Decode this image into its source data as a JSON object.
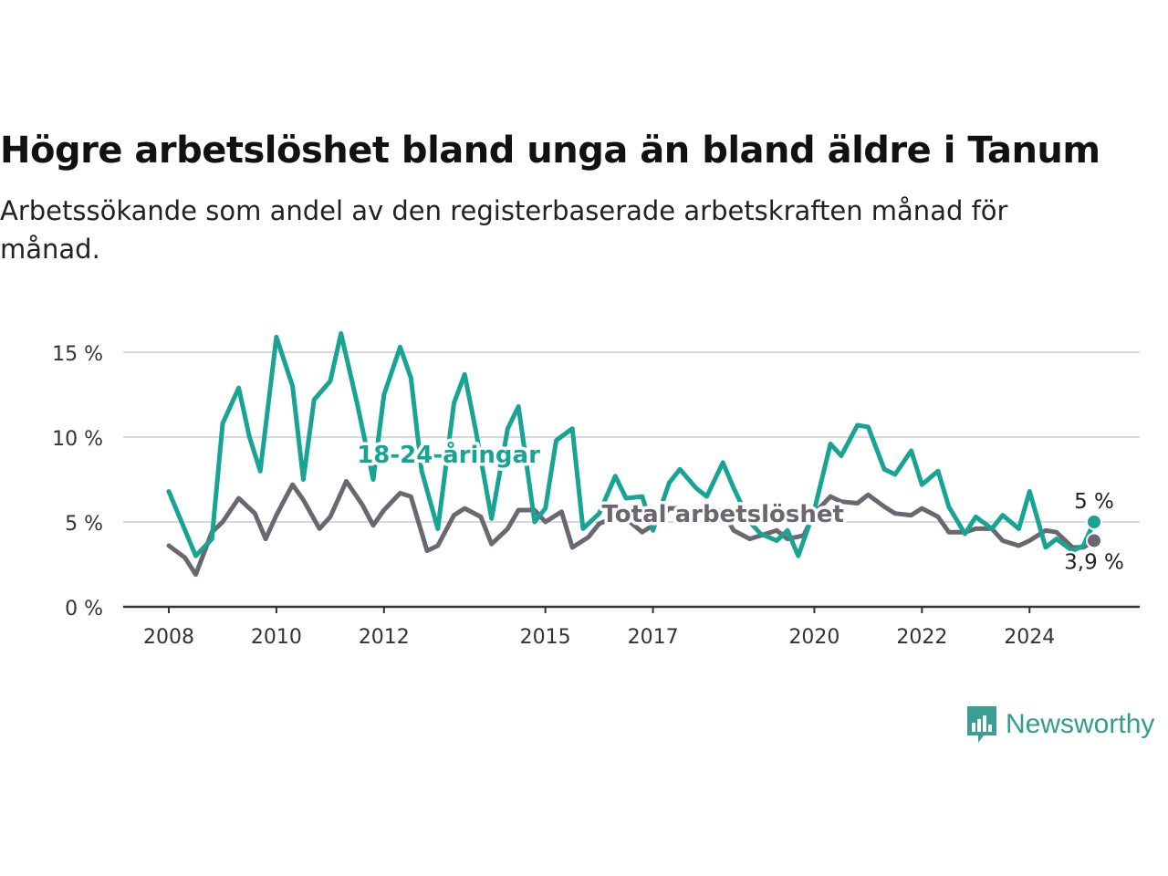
{
  "title": "Högre arbetslöshet bland unga än bland äldre i Tanum",
  "subtitle": "Arbetssökande som andel av den registerbaserade arbetskraften månad för månad.",
  "brand": {
    "name": "Newsworthy",
    "icon": "newsworthy-logo-icon",
    "color": "#3a9e92"
  },
  "chart_data": {
    "type": "line",
    "title": "",
    "xlabel": "",
    "ylabel": "",
    "ylim": [
      0,
      16
    ],
    "xlim": [
      2008,
      2025.9
    ],
    "y_ticks": [
      {
        "value": 0,
        "label": "0 %"
      },
      {
        "value": 5,
        "label": "5 %"
      },
      {
        "value": 10,
        "label": "10 %"
      },
      {
        "value": 15,
        "label": "15 %"
      }
    ],
    "x_ticks": [
      {
        "value": 2008,
        "label": "2008"
      },
      {
        "value": 2010,
        "label": "2010"
      },
      {
        "value": 2012,
        "label": "2012"
      },
      {
        "value": 2015,
        "label": "2015"
      },
      {
        "value": 2017,
        "label": "2017"
      },
      {
        "value": 2020,
        "label": "2020"
      },
      {
        "value": 2022,
        "label": "2022"
      },
      {
        "value": 2024,
        "label": "2024"
      }
    ],
    "grid": true,
    "series": [
      {
        "name": "18-24-åringar",
        "color": "#17a493",
        "end_label": "5 %",
        "x": [
          2008.0,
          2008.5,
          2008.8,
          2009.0,
          2009.3,
          2009.5,
          2009.7,
          2010.0,
          2010.3,
          2010.5,
          2010.7,
          2011.0,
          2011.2,
          2011.5,
          2011.8,
          2012.0,
          2012.3,
          2012.5,
          2012.7,
          2013.0,
          2013.3,
          2013.5,
          2013.7,
          2014.0,
          2014.3,
          2014.5,
          2014.8,
          2015.0,
          2015.2,
          2015.5,
          2015.7,
          2016.0,
          2016.3,
          2016.5,
          2016.8,
          2017.0,
          2017.3,
          2017.5,
          2017.8,
          2018.0,
          2018.3,
          2018.5,
          2018.8,
          2019.0,
          2019.3,
          2019.5,
          2019.7,
          2020.0,
          2020.3,
          2020.5,
          2020.8,
          2021.0,
          2021.3,
          2021.5,
          2021.8,
          2022.0,
          2022.3,
          2022.5,
          2022.8,
          2023.0,
          2023.3,
          2023.5,
          2023.8,
          2024.0,
          2024.3,
          2024.5,
          2024.8,
          2025.0,
          2025.2
        ],
        "y": [
          6.8,
          3.0,
          4.0,
          10.8,
          12.9,
          10.0,
          8.0,
          15.9,
          13.0,
          7.5,
          12.2,
          13.3,
          16.1,
          12.0,
          7.5,
          12.5,
          15.3,
          13.5,
          8.0,
          4.6,
          12.0,
          13.7,
          10.5,
          5.2,
          10.5,
          11.8,
          5.0,
          5.8,
          9.8,
          10.5,
          4.6,
          5.5,
          7.7,
          6.4,
          6.5,
          4.5,
          7.3,
          8.1,
          7.0,
          6.5,
          8.5,
          7.0,
          5.0,
          4.3,
          3.9,
          4.5,
          3.0,
          5.7,
          9.6,
          8.9,
          10.7,
          10.6,
          8.1,
          7.8,
          9.2,
          7.2,
          8.0,
          5.9,
          4.3,
          5.3,
          4.6,
          5.4,
          4.6,
          6.8,
          3.5,
          4.0,
          3.3,
          3.6,
          5.0
        ]
      },
      {
        "name": "Total arbetslöshet",
        "color": "#6b6670",
        "end_label": "3,9 %",
        "x": [
          2008.0,
          2008.3,
          2008.5,
          2008.8,
          2009.0,
          2009.3,
          2009.6,
          2009.8,
          2010.0,
          2010.3,
          2010.5,
          2010.8,
          2011.0,
          2011.3,
          2011.6,
          2011.8,
          2012.0,
          2012.3,
          2012.5,
          2012.8,
          2013.0,
          2013.3,
          2013.5,
          2013.8,
          2014.0,
          2014.3,
          2014.5,
          2014.8,
          2015.0,
          2015.3,
          2015.5,
          2015.8,
          2016.0,
          2016.3,
          2016.5,
          2016.8,
          2017.0,
          2017.3,
          2017.5,
          2017.8,
          2018.0,
          2018.3,
          2018.5,
          2018.8,
          2019.0,
          2019.3,
          2019.5,
          2019.8,
          2020.0,
          2020.3,
          2020.5,
          2020.8,
          2021.0,
          2021.3,
          2021.5,
          2021.8,
          2022.0,
          2022.3,
          2022.5,
          2022.8,
          2023.0,
          2023.3,
          2023.5,
          2023.8,
          2024.0,
          2024.3,
          2024.5,
          2024.8,
          2025.0,
          2025.2
        ],
        "y": [
          3.6,
          2.9,
          1.9,
          4.4,
          5.0,
          6.4,
          5.5,
          4.0,
          5.4,
          7.2,
          6.3,
          4.6,
          5.3,
          7.4,
          6.0,
          4.8,
          5.7,
          6.7,
          6.5,
          3.3,
          3.6,
          5.4,
          5.8,
          5.3,
          3.7,
          4.6,
          5.7,
          5.7,
          5.0,
          5.6,
          3.5,
          4.1,
          4.9,
          5.3,
          5.2,
          4.4,
          4.8,
          5.8,
          5.8,
          5.3,
          5.9,
          5.6,
          4.5,
          4.0,
          4.2,
          4.5,
          4.0,
          4.2,
          5.5,
          6.5,
          6.2,
          6.1,
          6.6,
          5.9,
          5.5,
          5.4,
          5.8,
          5.3,
          4.4,
          4.4,
          4.6,
          4.6,
          3.9,
          3.6,
          3.9,
          4.5,
          4.4,
          3.5,
          3.5,
          3.9
        ]
      }
    ],
    "annotations": [
      {
        "series": 0,
        "text": "18-24-åringar",
        "at_x": 2013.2,
        "at_y": 8.5
      },
      {
        "series": 1,
        "text": "Total arbetslöshet",
        "at_x": 2018.3,
        "at_y": 5.0
      }
    ]
  }
}
